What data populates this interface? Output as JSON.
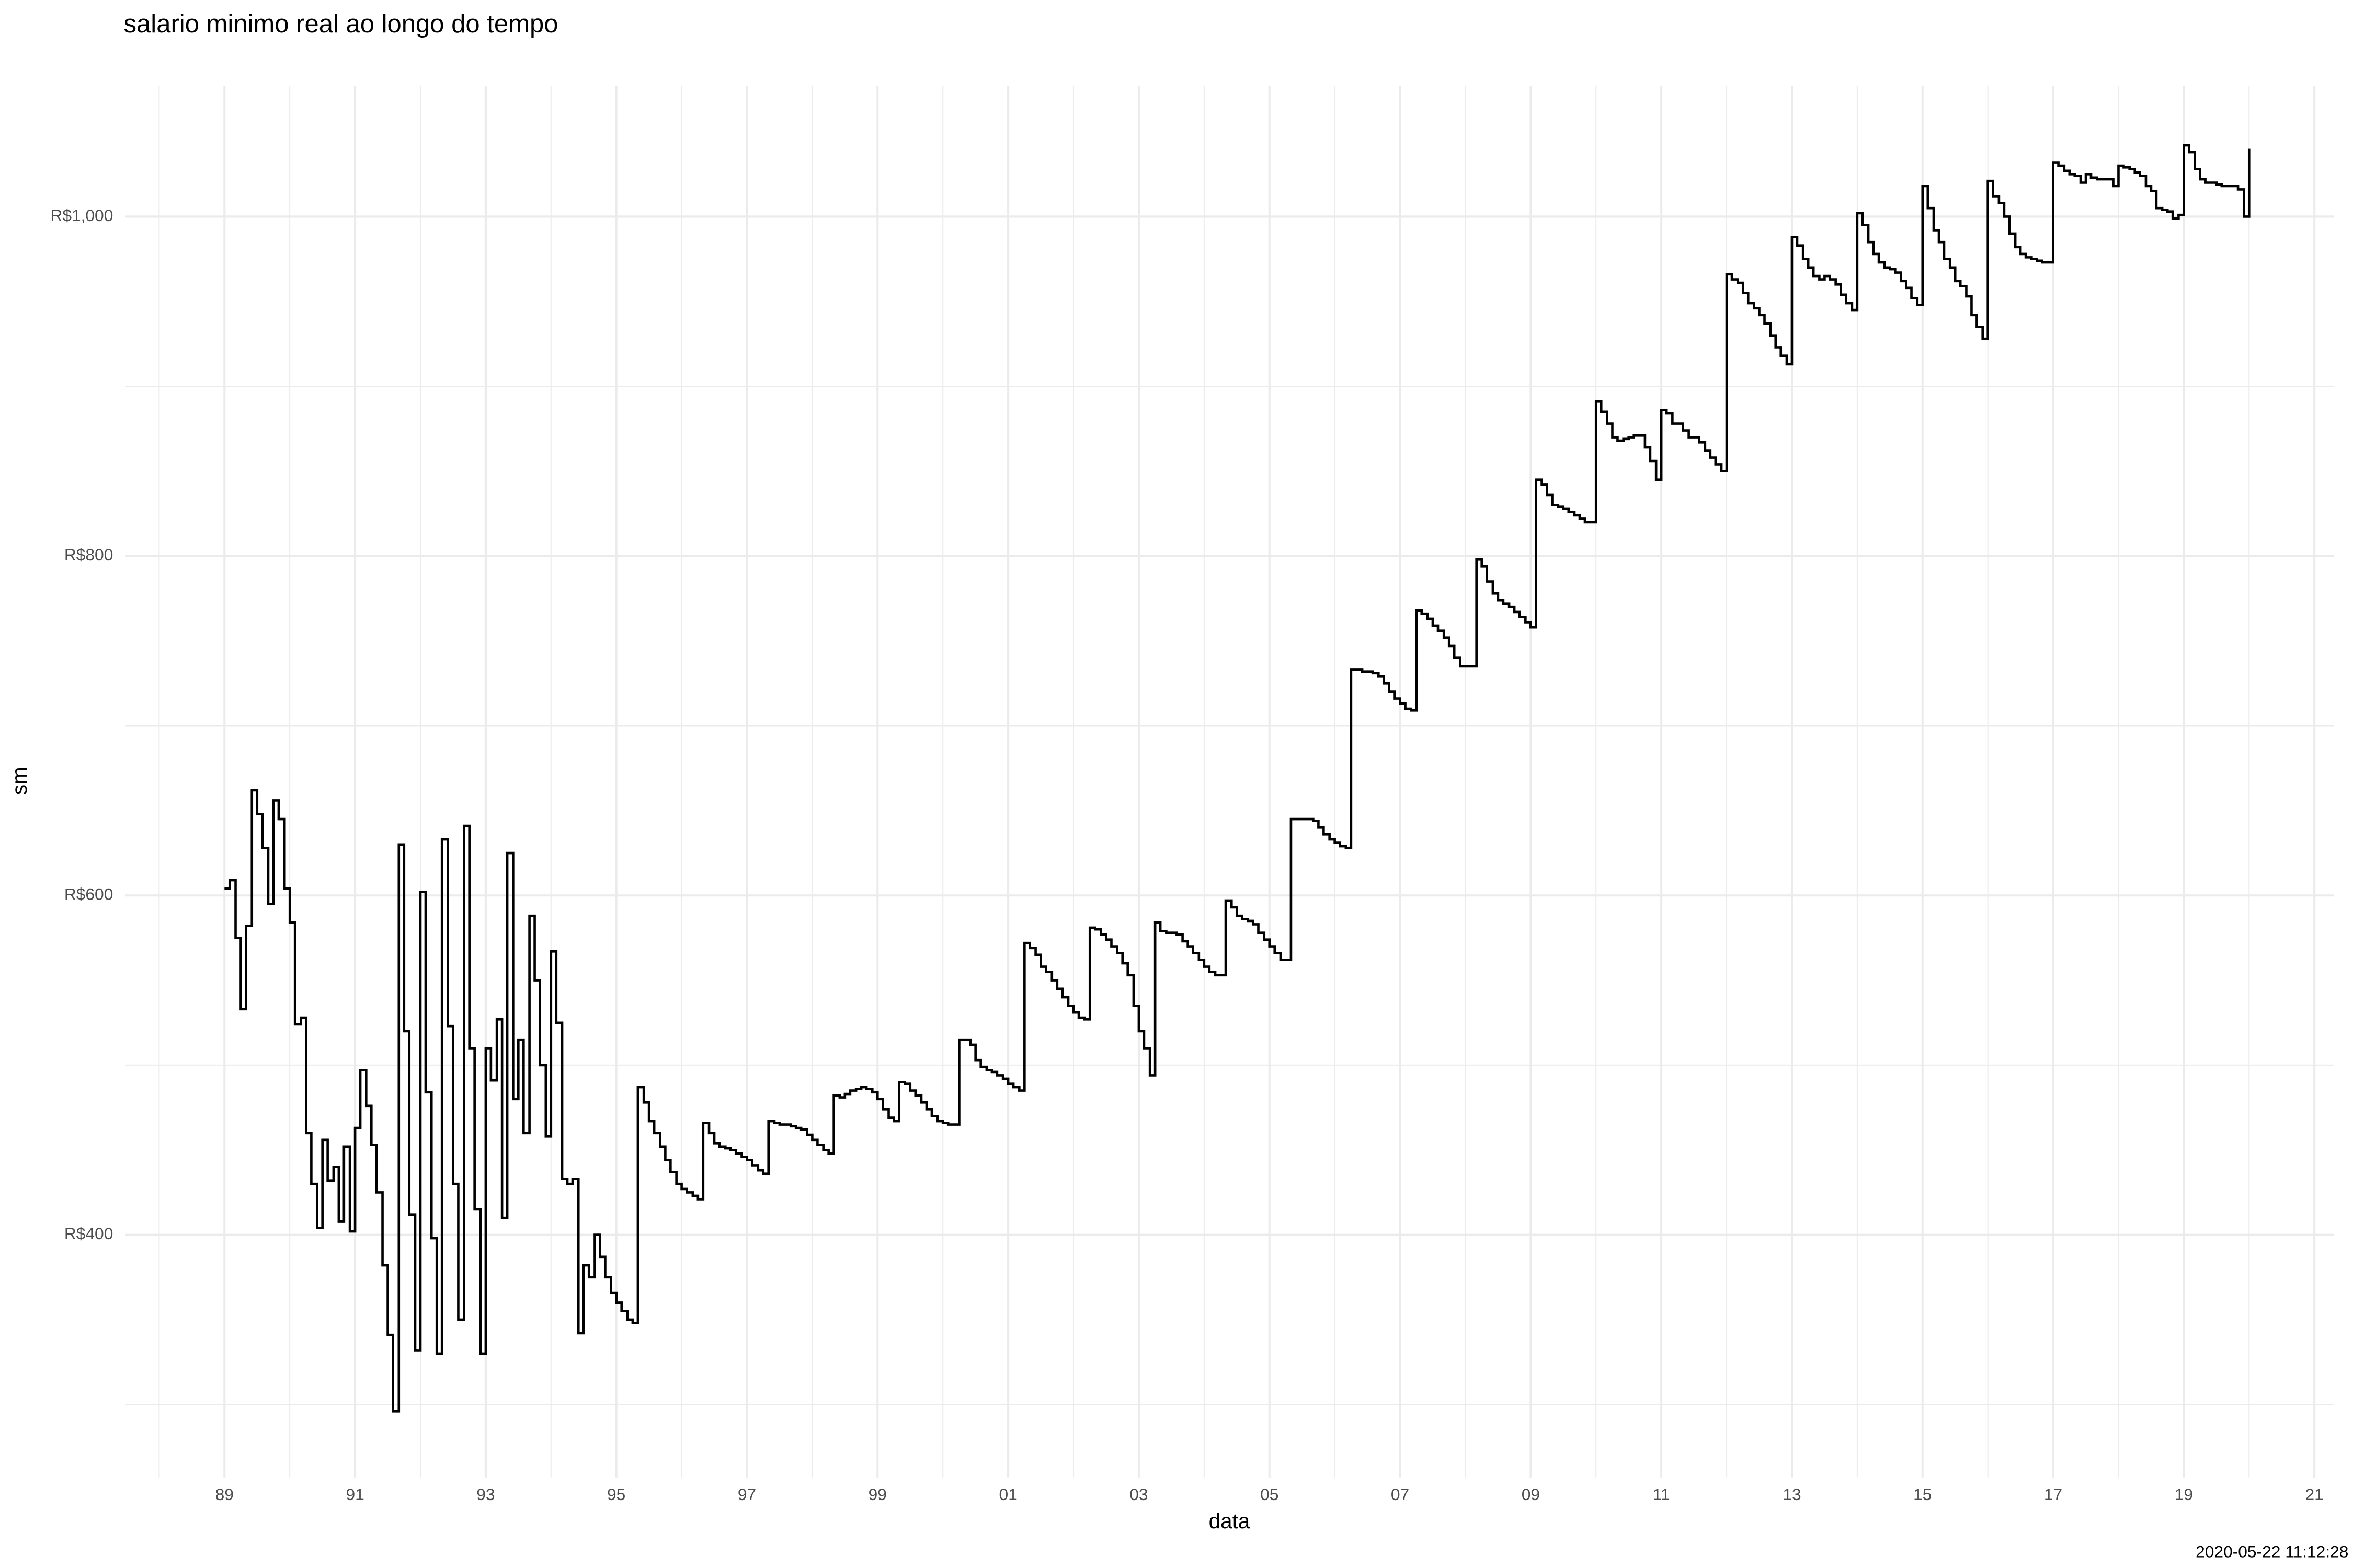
{
  "chart_data": {
    "type": "step",
    "title": "salario minimo real ao longo do tempo",
    "xlabel": "data",
    "ylabel": "sm",
    "caption": "2020-05-22 11:12:28",
    "color": "#000000",
    "grid": true,
    "xlim": [
      1987.48,
      2021.3
    ],
    "ylim": [
      257,
      1077
    ],
    "xticks": [
      {
        "value": 1989,
        "label": "89"
      },
      {
        "value": 1991,
        "label": "91"
      },
      {
        "value": 1993,
        "label": "93"
      },
      {
        "value": 1995,
        "label": "95"
      },
      {
        "value": 1997,
        "label": "97"
      },
      {
        "value": 1999,
        "label": "99"
      },
      {
        "value": 2001,
        "label": "01"
      },
      {
        "value": 2003,
        "label": "03"
      },
      {
        "value": 2005,
        "label": "05"
      },
      {
        "value": 2007,
        "label": "07"
      },
      {
        "value": 2009,
        "label": "09"
      },
      {
        "value": 2011,
        "label": "11"
      },
      {
        "value": 2013,
        "label": "13"
      },
      {
        "value": 2015,
        "label": "15"
      },
      {
        "value": 2017,
        "label": "17"
      },
      {
        "value": 2019,
        "label": "19"
      },
      {
        "value": 2021,
        "label": "21"
      }
    ],
    "xminorticks": [
      1988,
      1990,
      1992,
      1994,
      1996,
      1998,
      2000,
      2002,
      2004,
      2006,
      2008,
      2010,
      2012,
      2014,
      2016,
      2018,
      2020
    ],
    "yticks": [
      {
        "value": 400,
        "label": "R$400"
      },
      {
        "value": 600,
        "label": "R$600"
      },
      {
        "value": 800,
        "label": "R$800"
      },
      {
        "value": 1000,
        "label": "R$1,000"
      }
    ],
    "yminorticks": [
      300,
      500,
      700,
      900
    ],
    "x": [
      1989,
      1989.08,
      1989.17,
      1989.25,
      1989.33,
      1989.42,
      1989.5,
      1989.58,
      1989.67,
      1989.75,
      1989.83,
      1989.92,
      1990,
      1990.08,
      1990.17,
      1990.25,
      1990.33,
      1990.42,
      1990.5,
      1990.58,
      1990.67,
      1990.75,
      1990.83,
      1990.92,
      1991,
      1991.08,
      1991.17,
      1991.25,
      1991.33,
      1991.42,
      1991.5,
      1991.58,
      1991.67,
      1991.75,
      1991.83,
      1991.92,
      1992,
      1992.08,
      1992.17,
      1992.25,
      1992.33,
      1992.42,
      1992.5,
      1992.58,
      1992.67,
      1992.75,
      1992.83,
      1992.92,
      1993,
      1993.08,
      1993.17,
      1993.25,
      1993.33,
      1993.42,
      1993.5,
      1993.58,
      1993.67,
      1993.75,
      1993.83,
      1993.92,
      1994,
      1994.08,
      1994.17,
      1994.25,
      1994.33,
      1994.42,
      1994.5,
      1994.58,
      1994.67,
      1994.75,
      1994.83,
      1994.92,
      1995,
      1995.08,
      1995.17,
      1995.25,
      1995.33,
      1995.42,
      1995.5,
      1995.58,
      1995.67,
      1995.75,
      1995.83,
      1995.92,
      1996,
      1996.08,
      1996.17,
      1996.25,
      1996.33,
      1996.42,
      1996.5,
      1996.58,
      1996.67,
      1996.75,
      1996.83,
      1996.92,
      1997,
      1997.08,
      1997.17,
      1997.25,
      1997.33,
      1997.42,
      1997.5,
      1997.58,
      1997.67,
      1997.75,
      1997.83,
      1997.92,
      1998,
      1998.08,
      1998.17,
      1998.25,
      1998.33,
      1998.42,
      1998.5,
      1998.58,
      1998.67,
      1998.75,
      1998.83,
      1998.92,
      1999,
      1999.08,
      1999.17,
      1999.25,
      1999.33,
      1999.42,
      1999.5,
      1999.58,
      1999.67,
      1999.75,
      1999.83,
      1999.92,
      2000,
      2000.08,
      2000.17,
      2000.25,
      2000.33,
      2000.42,
      2000.5,
      2000.58,
      2000.67,
      2000.75,
      2000.83,
      2000.92,
      2001,
      2001.08,
      2001.17,
      2001.25,
      2001.33,
      2001.42,
      2001.5,
      2001.58,
      2001.67,
      2001.75,
      2001.83,
      2001.92,
      2002,
      2002.08,
      2002.17,
      2002.25,
      2002.33,
      2002.42,
      2002.5,
      2002.58,
      2002.67,
      2002.75,
      2002.83,
      2002.92,
      2003,
      2003.08,
      2003.17,
      2003.25,
      2003.33,
      2003.42,
      2003.5,
      2003.58,
      2003.67,
      2003.75,
      2003.83,
      2003.92,
      2004,
      2004.08,
      2004.17,
      2004.25,
      2004.33,
      2004.42,
      2004.5,
      2004.58,
      2004.67,
      2004.75,
      2004.83,
      2004.92,
      2005,
      2005.08,
      2005.17,
      2005.25,
      2005.33,
      2005.42,
      2005.5,
      2005.58,
      2005.67,
      2005.75,
      2005.83,
      2005.92,
      2006,
      2006.08,
      2006.17,
      2006.25,
      2006.33,
      2006.42,
      2006.5,
      2006.58,
      2006.67,
      2006.75,
      2006.83,
      2006.92,
      2007,
      2007.08,
      2007.17,
      2007.25,
      2007.33,
      2007.42,
      2007.5,
      2007.58,
      2007.67,
      2007.75,
      2007.83,
      2007.92,
      2008,
      2008.08,
      2008.17,
      2008.25,
      2008.33,
      2008.42,
      2008.5,
      2008.58,
      2008.67,
      2008.75,
      2008.83,
      2008.92,
      2009,
      2009.08,
      2009.17,
      2009.25,
      2009.33,
      2009.42,
      2009.5,
      2009.58,
      2009.67,
      2009.75,
      2009.83,
      2009.92,
      2010,
      2010.08,
      2010.17,
      2010.25,
      2010.33,
      2010.42,
      2010.5,
      2010.58,
      2010.67,
      2010.75,
      2010.83,
      2010.92,
      2011,
      2011.08,
      2011.17,
      2011.25,
      2011.33,
      2011.42,
      2011.5,
      2011.58,
      2011.67,
      2011.75,
      2011.83,
      2011.92,
      2012,
      2012.08,
      2012.17,
      2012.25,
      2012.33,
      2012.42,
      2012.5,
      2012.58,
      2012.67,
      2012.75,
      2012.83,
      2012.92,
      2013,
      2013.08,
      2013.17,
      2013.25,
      2013.33,
      2013.42,
      2013.5,
      2013.58,
      2013.67,
      2013.75,
      2013.83,
      2013.92,
      2014,
      2014.08,
      2014.17,
      2014.25,
      2014.33,
      2014.42,
      2014.5,
      2014.58,
      2014.67,
      2014.75,
      2014.83,
      2014.92,
      2015,
      2015.08,
      2015.17,
      2015.25,
      2015.33,
      2015.42,
      2015.5,
      2015.58,
      2015.67,
      2015.75,
      2015.83,
      2015.92,
      2016,
      2016.08,
      2016.17,
      2016.25,
      2016.33,
      2016.42,
      2016.5,
      2016.58,
      2016.67,
      2016.75,
      2016.83,
      2016.92,
      2017,
      2017.08,
      2017.17,
      2017.25,
      2017.33,
      2017.42,
      2017.5,
      2017.58,
      2017.67,
      2017.75,
      2017.83,
      2017.92,
      2018,
      2018.08,
      2018.17,
      2018.25,
      2018.33,
      2018.42,
      2018.5,
      2018.58,
      2018.67,
      2018.75,
      2018.83,
      2018.92,
      2019,
      2019.08,
      2019.17,
      2019.25,
      2019.33,
      2019.42,
      2019.5,
      2019.58,
      2019.67,
      2019.75,
      2019.83,
      2019.92,
      2020
    ],
    "values": [
      604,
      609,
      575,
      533,
      582,
      662,
      648,
      628,
      595,
      656,
      645,
      604,
      584,
      524,
      528,
      460,
      430,
      404,
      456,
      432,
      440,
      408,
      452,
      402,
      463,
      497,
      476,
      453,
      425,
      382,
      341,
      296,
      630,
      520,
      412,
      332,
      602,
      484,
      398,
      330,
      633,
      523,
      430,
      350,
      641,
      510,
      415,
      330,
      510,
      491,
      527,
      410,
      625,
      480,
      515,
      460,
      588,
      550,
      500,
      458,
      567,
      525,
      433,
      430,
      433,
      342,
      382,
      375,
      400,
      387,
      375,
      366,
      360,
      355,
      350,
      348,
      487,
      478,
      467,
      460,
      452,
      444,
      437,
      430,
      427,
      425,
      423,
      421,
      466,
      460,
      454,
      452,
      451,
      450,
      448,
      446,
      444,
      441,
      438,
      436,
      467,
      466,
      465,
      465,
      464,
      463,
      462,
      459,
      456,
      453,
      450,
      448,
      482,
      481,
      483,
      485,
      486,
      487,
      486,
      484,
      480,
      474,
      469,
      467,
      490,
      489,
      485,
      482,
      478,
      474,
      470,
      467,
      466,
      465,
      465,
      515,
      515,
      512,
      503,
      499,
      497,
      496,
      494,
      492,
      489,
      487,
      485,
      572,
      569,
      565,
      558,
      555,
      550,
      545,
      540,
      535,
      531,
      528,
      527,
      581,
      580,
      577,
      574,
      570,
      566,
      560,
      553,
      535,
      520,
      510,
      494,
      584,
      579,
      578,
      578,
      577,
      573,
      570,
      566,
      562,
      558,
      555,
      553,
      553,
      597,
      593,
      588,
      586,
      585,
      583,
      578,
      574,
      570,
      566,
      562,
      562,
      645,
      645,
      645,
      645,
      644,
      640,
      636,
      633,
      631,
      629,
      628,
      733,
      733,
      732,
      732,
      731,
      729,
      725,
      720,
      716,
      713,
      710,
      709,
      768,
      766,
      763,
      759,
      756,
      752,
      747,
      740,
      735,
      735,
      735,
      798,
      794,
      785,
      778,
      774,
      772,
      770,
      767,
      764,
      761,
      758,
      845,
      842,
      836,
      830,
      829,
      828,
      826,
      824,
      822,
      820,
      820,
      891,
      885,
      878,
      870,
      868,
      869,
      870,
      871,
      871,
      864,
      856,
      845,
      886,
      884,
      878,
      878,
      874,
      870,
      870,
      867,
      862,
      858,
      854,
      850,
      966,
      963,
      961,
      955,
      949,
      946,
      942,
      937,
      930,
      923,
      918,
      913,
      988,
      983,
      975,
      970,
      965,
      963,
      965,
      963,
      960,
      954,
      949,
      945,
      1002,
      995,
      985,
      978,
      973,
      970,
      969,
      967,
      962,
      958,
      952,
      948,
      1018,
      1005,
      992,
      985,
      975,
      970,
      962,
      959,
      953,
      942,
      935,
      928,
      1021,
      1012,
      1008,
      1000,
      990,
      982,
      978,
      976,
      975,
      974,
      973,
      973,
      1032,
      1030,
      1027,
      1025,
      1024,
      1020,
      1025,
      1023,
      1022,
      1022,
      1022,
      1018,
      1030,
      1029,
      1028,
      1026,
      1024,
      1018,
      1015,
      1005,
      1004,
      1003,
      999,
      1001,
      1042,
      1038,
      1028,
      1022,
      1020,
      1020,
      1019,
      1018,
      1018,
      1018,
      1016,
      1000,
      1040
    ]
  }
}
